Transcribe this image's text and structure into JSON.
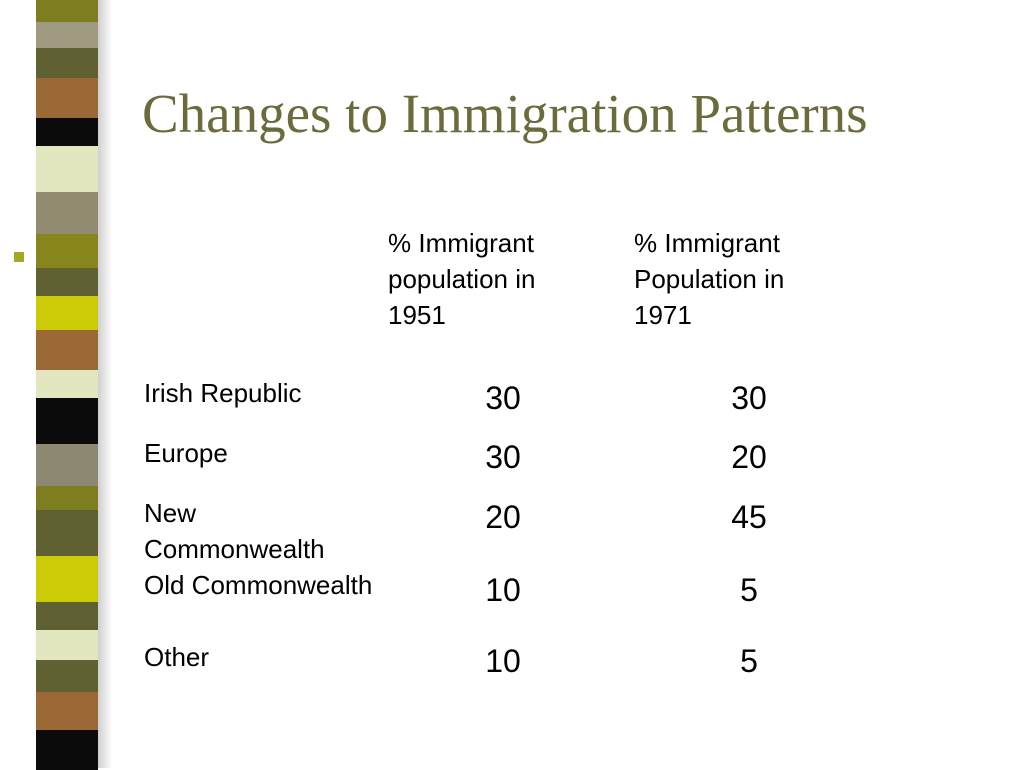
{
  "slide": {
    "title": "Changes to Immigration Patterns",
    "bullet_icon": "square-bullet-icon",
    "stripe_colors": [
      "#7e7e20",
      "#a09a80",
      "#5f6132",
      "#9c6936",
      "#0b0b0b",
      "#e2e7bf",
      "#928b70",
      "#86861c",
      "#5f6132",
      "#cbcb08",
      "#9c6936",
      "#e2e7bf",
      "#0b0b0b",
      "#8c8872",
      "#7e7e20",
      "#5f6132",
      "#cbcb08",
      "#5f6132",
      "#e2e7bf",
      "#5f6132",
      "#9c6936",
      "#0b0b0b"
    ]
  },
  "table": {
    "column_headers": [
      "% Immigrant population in 1951",
      "% Immigrant Population in 1971"
    ],
    "rows": [
      {
        "label": "Irish Republic",
        "y1951": "30",
        "y1971": "30"
      },
      {
        "label": "Europe",
        "y1951": "30",
        "y1971": "20"
      },
      {
        "label": "New Commonwealth",
        "y1951": "20",
        "y1971": "45"
      },
      {
        "label": "Old Commonwealth",
        "y1951": "10",
        "y1971": "5"
      },
      {
        "label": "Other",
        "y1951": "10",
        "y1971": "5"
      }
    ]
  }
}
